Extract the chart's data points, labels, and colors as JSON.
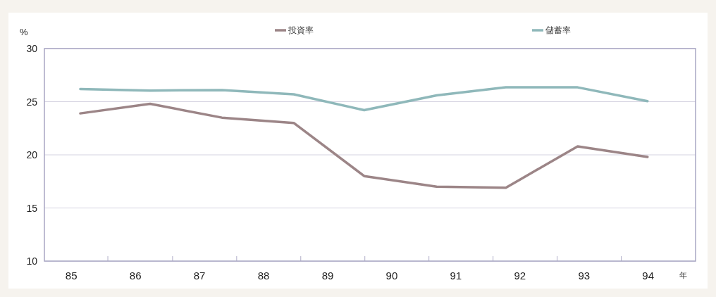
{
  "chart_data": {
    "type": "line",
    "ylabel": "%",
    "xlabel": "年",
    "x": [
      85.14,
      86.23,
      87.35,
      88.47,
      89.57,
      90.7,
      91.78,
      92.9,
      93.99
    ],
    "series": [
      {
        "name": "投資率",
        "color": "#9c8587",
        "values": [
          23.9,
          24.8,
          23.5,
          23.0,
          18.0,
          17.0,
          16.9,
          20.8,
          19.8
        ]
      },
      {
        "name": "儲蓄率",
        "color": "#8fb8ba",
        "values": [
          26.2,
          26.05,
          26.1,
          25.7,
          24.2,
          25.6,
          26.35,
          26.35,
          25.05
        ]
      }
    ],
    "xlim": [
      84.58,
      94.74
    ],
    "xticks": [
      85,
      {
        "value": 85.57,
        "label": null
      },
      86,
      {
        "value": 86.58,
        "label": null
      },
      87,
      {
        "value": 87.58,
        "label": null
      },
      88,
      {
        "value": 88.58,
        "label": null
      },
      89,
      {
        "value": 89.58,
        "label": null
      },
      90,
      {
        "value": 90.58,
        "label": null
      },
      91,
      {
        "value": 91.58,
        "label": null
      },
      92,
      {
        "value": 92.58,
        "label": null
      },
      93,
      {
        "value": 93.58,
        "label": null
      },
      94
    ],
    "ylim": [
      10,
      30
    ],
    "yticks": [
      10,
      15,
      20,
      25,
      30
    ],
    "grid": "y",
    "legend": "top",
    "marker": "none",
    "line_style": "solid"
  }
}
